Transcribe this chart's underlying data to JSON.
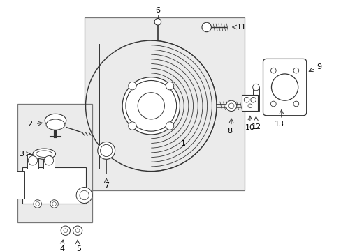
{
  "bg": "#ffffff",
  "lc": "#333333",
  "box_bg": "#ebebeb",
  "fig_w": 4.89,
  "fig_h": 3.6,
  "dpi": 100
}
